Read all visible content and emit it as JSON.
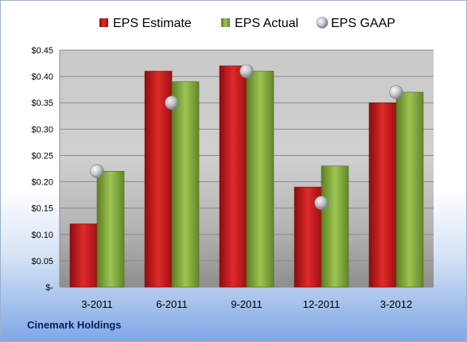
{
  "footer_label": "Cinemark Holdings",
  "chart_data": {
    "type": "bar",
    "categories": [
      "3-2011",
      "6-2011",
      "9-2011",
      "12-2011",
      "3-2012"
    ],
    "series": [
      {
        "name": "EPS Estimate",
        "kind": "bar",
        "color": "#d31f1f",
        "values": [
          0.12,
          0.41,
          0.42,
          0.19,
          0.35
        ]
      },
      {
        "name": "EPS Actual",
        "kind": "bar",
        "color": "#8cb33f",
        "values": [
          0.22,
          0.39,
          0.41,
          0.23,
          0.37
        ]
      },
      {
        "name": "EPS GAAP",
        "kind": "marker",
        "color": "#b8bcc4",
        "values": [
          0.22,
          0.35,
          0.41,
          0.16,
          0.37
        ]
      }
    ],
    "y_ticks": [
      "$-",
      "$0.05",
      "$0.10",
      "$0.15",
      "$0.20",
      "$0.25",
      "$0.30",
      "$0.35",
      "$0.40",
      "$0.45"
    ],
    "y_tick_values": [
      0,
      0.05,
      0.1,
      0.15,
      0.2,
      0.25,
      0.3,
      0.35,
      0.4,
      0.45
    ],
    "ylim": [
      0,
      0.45
    ],
    "legend_position": "top",
    "grid": true
  }
}
